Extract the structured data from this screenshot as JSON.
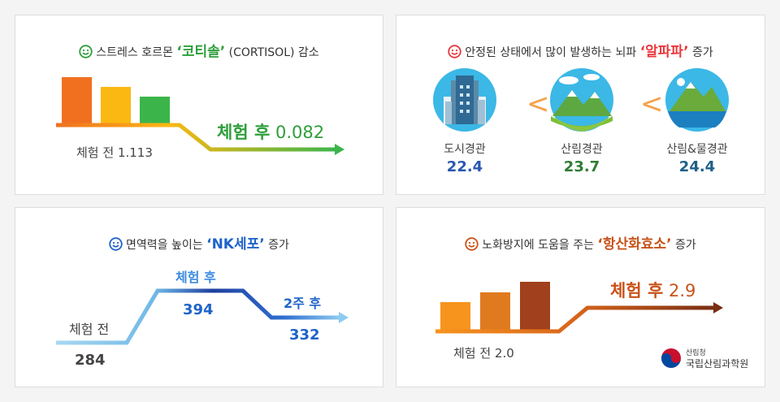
{
  "panels": {
    "cortisol": {
      "title_pre": "스트레스 호르몬 ",
      "title_hl": "‘코티솔’",
      "title_post": " (CORTISOL) 감소",
      "before_label": "체험 전 1.113",
      "after_label": "체험 후",
      "after_value": "0.082",
      "colors": {
        "accent": "#2e9e3a",
        "bar1": "#f07020",
        "bar2": "#fbb813",
        "bar3": "#3bb54a"
      }
    },
    "alpha": {
      "title_pre": "안정된 상태에서 많이 발생하는 뇌파 ",
      "title_hl": "‘알파파’",
      "title_post": " 증가",
      "items": [
        {
          "label": "도시경관",
          "value": "22.4",
          "icon": "city-icon"
        },
        {
          "label": "산림경관",
          "value": "23.7",
          "icon": "mountain-forest-icon"
        },
        {
          "label": "산림&물경관",
          "value": "24.4",
          "icon": "mountain-lake-icon"
        }
      ],
      "separator": "<",
      "colors": {
        "accent": "#e8383d",
        "value1": "#2a56b0",
        "value2": "#2e7d32",
        "value3": "#1d5f8a"
      }
    },
    "nk": {
      "title_pre": "면역력을 높이는 ",
      "title_hl": "‘NK세포’",
      "title_post": " 증가",
      "before_label": "체험 전",
      "before_value": "284",
      "after_label": "체험 후",
      "after_value": "394",
      "week2_label": "2주 후",
      "week2_value": "332",
      "colors": {
        "accent": "#1f63c9",
        "line_light": "#a8d8f0",
        "line_dark": "#1f3f9e"
      }
    },
    "antioxidant": {
      "title_pre": "노화방지에 도움을 주는 ",
      "title_hl": "‘항산화효소’",
      "title_post": " 증가",
      "before_label": "체험 전 2.0",
      "after_label": "체험 후",
      "after_value": "2.9",
      "colors": {
        "accent": "#c8531a",
        "bar1": "#f7941d",
        "bar2": "#e07a1f",
        "bar3": "#a0401c"
      },
      "logo_small": "산림청",
      "logo_main": "국립산림과학원"
    }
  }
}
